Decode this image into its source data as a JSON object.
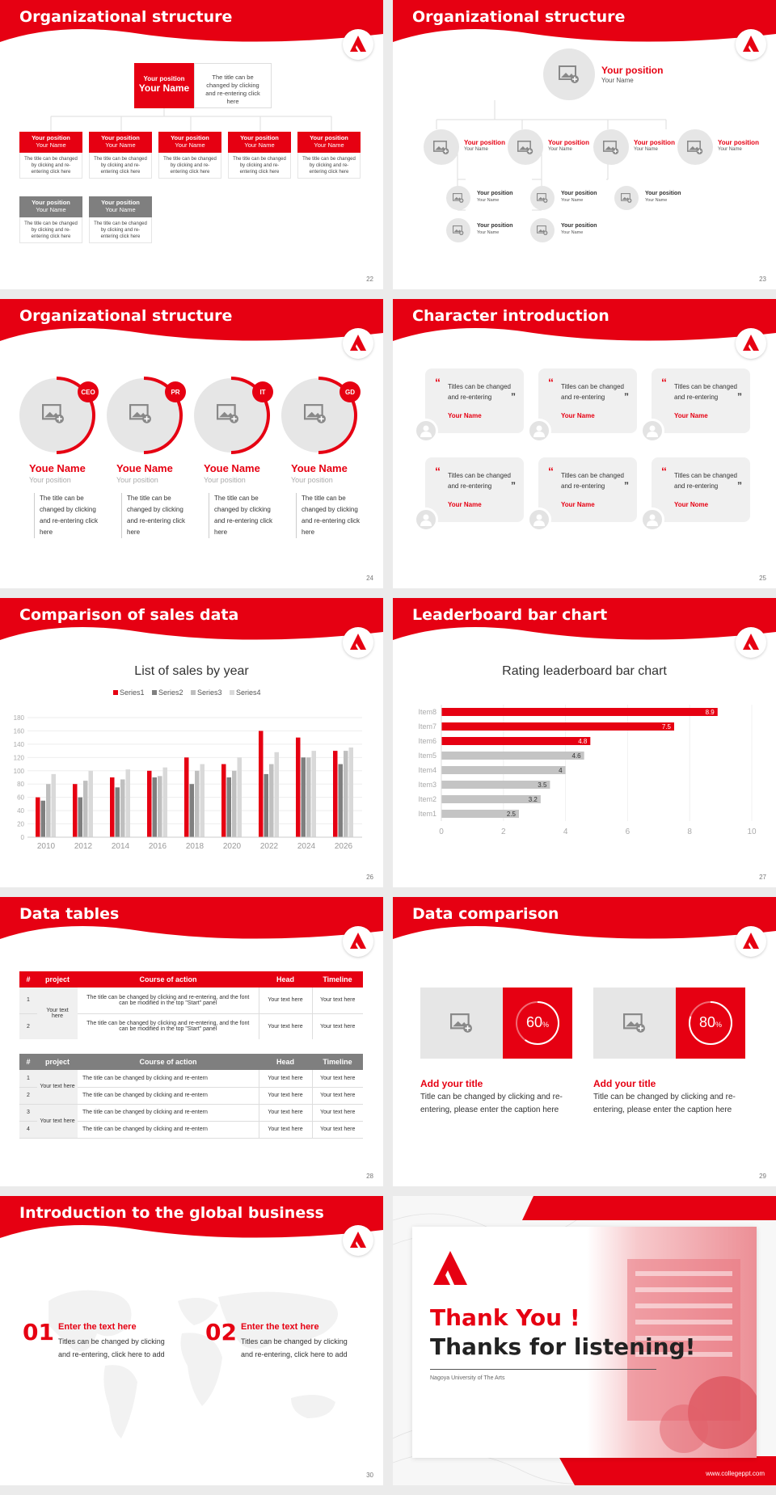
{
  "colors": {
    "accent": "#e60012",
    "gray": "#8c8c8c",
    "light": "#f0f0f0"
  },
  "slides": {
    "s22": {
      "title": "Organizational structure",
      "page": "22",
      "top_position": "Your position",
      "top_name": "Your Name",
      "top_desc": "The title can be changed by clicking and re-entering click here",
      "items": [
        {
          "pos": "Your position",
          "name": "Your Name",
          "desc": "The title can be changed by clicking and re-entering click here"
        },
        {
          "pos": "Your position",
          "name": "Your Name",
          "desc": "The title can be changed by clicking and re-entering click here"
        },
        {
          "pos": "Your position",
          "name": "Your Name",
          "desc": "The title can be changed by clicking and re-entering click here"
        },
        {
          "pos": "Your position",
          "name": "Your Name",
          "desc": "The title can be changed by clicking and re-entering click here"
        },
        {
          "pos": "Your position",
          "name": "Your Name",
          "desc": "The title can be changed by clicking and re-entering click here"
        },
        {
          "pos": "Your position",
          "name": "Your Name",
          "desc": "The title can be changed by clicking and re-entering click here"
        },
        {
          "pos": "Your position",
          "name": "Your Name",
          "desc": "The title can be changed by clicking and re-entering click here"
        }
      ]
    },
    "s23": {
      "title": "Organizational structure",
      "page": "23",
      "top_position": "Your position",
      "top_name": "Your Name",
      "mid": [
        {
          "pos": "Your position",
          "name": "Your Name"
        },
        {
          "pos": "Your position",
          "name": "Your Name"
        },
        {
          "pos": "Your position",
          "name": "Your Name"
        },
        {
          "pos": "Your position",
          "name": "Your Name"
        }
      ],
      "sub": [
        {
          "pos": "Your position",
          "name": "Your Name"
        },
        {
          "pos": "Your position",
          "name": "Your Name"
        },
        {
          "pos": "Your position",
          "name": "Your Name"
        },
        {
          "pos": "Your position",
          "name": "Your Name"
        },
        {
          "pos": "Your position",
          "name": "Your Name"
        }
      ]
    },
    "s24": {
      "title": "Organizational structure",
      "page": "24",
      "people": [
        {
          "badge": "CEO",
          "name": "Youe Name",
          "pos": "Your position",
          "desc": "The title can be changed by clicking and re-entering click here"
        },
        {
          "badge": "PR",
          "name": "Youe Name",
          "pos": "Your position",
          "desc": "The title can be changed by clicking and re-entering click here"
        },
        {
          "badge": "IT",
          "name": "Youe Name",
          "pos": "Your position",
          "desc": "The title can be changed by clicking and re-entering click here"
        },
        {
          "badge": "GD",
          "name": "Youe Name",
          "pos": "Your position",
          "desc": "The title can be changed by clicking and re-entering click here"
        }
      ]
    },
    "s25": {
      "title": "Character introduction",
      "page": "25",
      "cards": [
        {
          "text": "Titles can be changed and re-entering",
          "name": "Your Name"
        },
        {
          "text": "Titles can be changed and re-entering",
          "name": "Your Name"
        },
        {
          "text": "Titles can be changed and re-entering",
          "name": "Your Name"
        },
        {
          "text": "Titles can be changed and re-entering",
          "name": "Your Name"
        },
        {
          "text": "Titles can be changed and re-entering",
          "name": "Your Name"
        },
        {
          "text": "Titles can be changed and re-entering",
          "name": "Your Nome"
        }
      ]
    },
    "s26": {
      "title": "Comparison of sales data",
      "page": "26"
    },
    "s27": {
      "title": "Leaderboard bar chart",
      "page": "27"
    },
    "s28": {
      "title": "Data tables",
      "page": "28",
      "headers": [
        "#",
        "project",
        "Course of action",
        "Head",
        "Timeline"
      ],
      "t1": {
        "project": "Your text here",
        "rows": [
          {
            "n": "1",
            "action": "The title can be changed by clicking and re-entering, and the font can be modified in the top \"Start\" panel",
            "head": "Your text here",
            "time": "Your text here"
          },
          {
            "n": "2",
            "action": "The title can be changed by clicking and re-entering, and the font can be modified in the top \"Start\" panel",
            "head": "Your text here",
            "time": "Your text here"
          }
        ]
      },
      "t2": {
        "projects": [
          "Your text here",
          "Your text here"
        ],
        "rows": [
          {
            "n": "1",
            "action": "The title can be changed by clicking and re-entern",
            "head": "Your text here",
            "time": "Your text here"
          },
          {
            "n": "2",
            "action": "The title can be changed by clicking and re-entern",
            "head": "Your text here",
            "time": "Your text here"
          },
          {
            "n": "3",
            "action": "The title can be changed by clicking and re-entern",
            "head": "Your text here",
            "time": "Your text here"
          },
          {
            "n": "4",
            "action": "The title can be changed by clicking and re-entern",
            "head": "Your text here",
            "time": "Your text here"
          }
        ]
      }
    },
    "s29": {
      "title": "Data comparison",
      "page": "29",
      "items": [
        {
          "pct": "60",
          "unit": "%",
          "title": "Add your title",
          "desc": "Title can be changed by clicking and re-entering, please enter the caption here",
          "value": 0.6
        },
        {
          "pct": "80",
          "unit": "%",
          "title": "Add your title",
          "desc": "Title can be changed by clicking and re-entering, please enter the caption here",
          "value": 0.8
        }
      ]
    },
    "s30": {
      "title": "Introduction to the global business",
      "page": "30",
      "items": [
        {
          "num": "01",
          "title": "Enter the text here",
          "desc": "Titles can be changed by clicking and re-entering, click here to add"
        },
        {
          "num": "02",
          "title": "Enter the text here",
          "desc": "Titles can be changed by clicking and re-entering, click here to add"
        }
      ]
    },
    "s31": {
      "thanks": "Thank You !",
      "listening": "Thanks for listening!",
      "university": "Nagoya University of The Arts",
      "url": "www.collegeppt.com"
    }
  },
  "chart_data": [
    {
      "type": "bar",
      "title": "List of sales by year",
      "categories": [
        "2010",
        "2012",
        "2014",
        "2016",
        "2018",
        "2020",
        "2022",
        "2024",
        "2026"
      ],
      "series": [
        {
          "name": "Series1",
          "color": "#e60012",
          "values": [
            60,
            80,
            90,
            100,
            120,
            110,
            160,
            150,
            130
          ]
        },
        {
          "name": "Series2",
          "color": "#7f7f7f",
          "values": [
            55,
            60,
            75,
            90,
            80,
            90,
            95,
            120,
            110
          ]
        },
        {
          "name": "Series3",
          "color": "#bfbfbf",
          "values": [
            80,
            85,
            87,
            92,
            100,
            100,
            110,
            120,
            130
          ]
        },
        {
          "name": "Series4",
          "color": "#d9d9d9",
          "values": [
            95,
            100,
            102,
            105,
            110,
            120,
            128,
            130,
            135
          ]
        }
      ],
      "yticks": [
        "0",
        "20",
        "40",
        "60",
        "80",
        "100",
        "120",
        "140",
        "160",
        "180"
      ],
      "ylim": [
        0,
        180
      ],
      "legend": "top"
    },
    {
      "type": "bar",
      "orientation": "horizontal",
      "title": "Rating leaderboard bar chart",
      "categories": [
        "Item8",
        "Item7",
        "Item6",
        "Item5",
        "Item4",
        "Item3",
        "Item2",
        "Item1"
      ],
      "values": [
        8.9,
        7.5,
        4.8,
        4.6,
        4,
        3.5,
        3.2,
        2.5
      ],
      "labels": [
        "8.9",
        "7.5",
        "4.8",
        "4.6",
        "4",
        "3.5",
        "3.2",
        "2.5"
      ],
      "highlight": [
        true,
        true,
        true,
        false,
        false,
        false,
        false,
        false
      ],
      "xticks": [
        "0",
        "2",
        "4",
        "6",
        "8",
        "10"
      ],
      "xlim": [
        0,
        10
      ]
    }
  ]
}
